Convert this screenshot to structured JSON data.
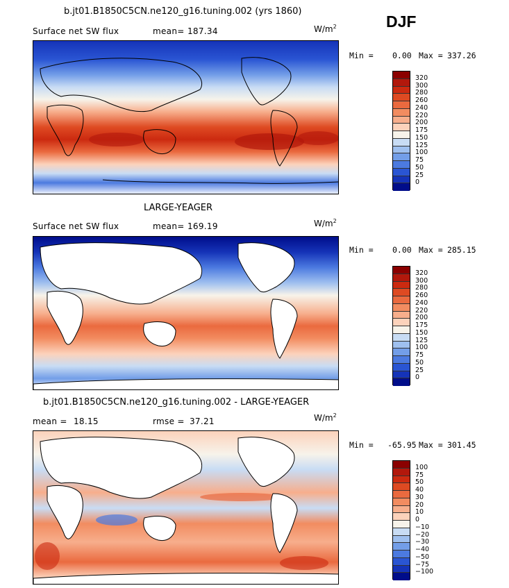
{
  "season": "DJF",
  "units_base": "W/m",
  "units_exp": "2",
  "panels": [
    {
      "title": "b.jt01.B1850C5CN.ne120_g16.tuning.002 (yrs 1860)",
      "variable": "Surface net SW flux",
      "stat1": "mean=",
      "stat1_value": "187.34",
      "stat2": "",
      "stat2_value": "",
      "min_label": "Min =",
      "min_value": "0.00",
      "max_label": "Max =",
      "max_value": "337.26",
      "land_masked": false
    },
    {
      "title": "LARGE-YEAGER",
      "variable": "Surface net SW flux",
      "stat1": "mean=",
      "stat1_value": "169.19",
      "stat2": "",
      "stat2_value": "",
      "min_label": "Min =",
      "min_value": "0.00",
      "max_label": "Max =",
      "max_value": "285.15",
      "land_masked": true
    },
    {
      "title": "b.jt01.B1850C5CN.ne120_g16.tuning.002 - LARGE-YEAGER",
      "variable": "",
      "stat1": "mean =",
      "stat1_value": "18.15",
      "stat2": "rmse =",
      "stat2_value": "37.21",
      "min_label": "Min =",
      "min_value": "-65.95",
      "max_label": "Max =",
      "max_value": "301.45",
      "land_masked": true
    }
  ],
  "colorbars": [
    {
      "labels": [
        "320",
        "300",
        "280",
        "260",
        "240",
        "220",
        "200",
        "175",
        "150",
        "125",
        "100",
        "75",
        "50",
        "25",
        "0"
      ],
      "colors": [
        "#8b0000",
        "#b2180c",
        "#cc2a10",
        "#de4a22",
        "#ea6a3f",
        "#f28c60",
        "#f7ae8c",
        "#fcd2bb",
        "#f7f3ea",
        "#c8dcf4",
        "#9fc0ef",
        "#739ee8",
        "#4c7ae0",
        "#2a55d3",
        "#1533b8",
        "#000d8a"
      ]
    },
    {
      "labels": [
        "320",
        "300",
        "280",
        "260",
        "240",
        "220",
        "200",
        "175",
        "150",
        "125",
        "100",
        "75",
        "50",
        "25",
        "0"
      ],
      "colors": [
        "#8b0000",
        "#b2180c",
        "#cc2a10",
        "#de4a22",
        "#ea6a3f",
        "#f28c60",
        "#f7ae8c",
        "#fcd2bb",
        "#f7f3ea",
        "#c8dcf4",
        "#9fc0ef",
        "#739ee8",
        "#4c7ae0",
        "#2a55d3",
        "#1533b8",
        "#000d8a"
      ]
    },
    {
      "labels": [
        "100",
        "75",
        "50",
        "40",
        "30",
        "20",
        "10",
        "0",
        "−10",
        "−20",
        "−30",
        "−40",
        "−50",
        "−75",
        "−100"
      ],
      "colors": [
        "#8b0000",
        "#b2180c",
        "#cc2a10",
        "#de4a22",
        "#ea6a3f",
        "#f28c60",
        "#f7ae8c",
        "#fcd2bb",
        "#f7f3ea",
        "#c8dcf4",
        "#9fc0ef",
        "#739ee8",
        "#4c7ae0",
        "#2a55d3",
        "#1533b8",
        "#000d8a"
      ]
    }
  ]
}
